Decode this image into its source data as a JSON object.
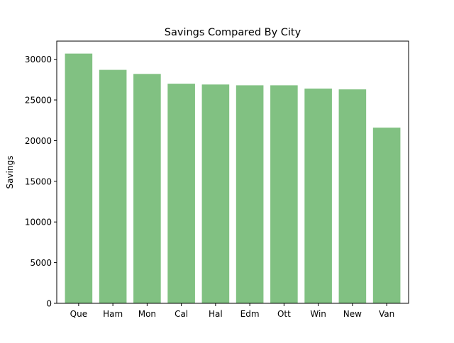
{
  "chart_data": {
    "type": "bar",
    "title": "Savings Compared By City",
    "xlabel": "",
    "ylabel": "Savings",
    "categories": [
      "Que",
      "Ham",
      "Mon",
      "Cal",
      "Hal",
      "Edm",
      "Ott",
      "Win",
      "New",
      "Van"
    ],
    "values": [
      30700,
      28700,
      28200,
      27000,
      26900,
      26800,
      26800,
      26400,
      26300,
      21600
    ],
    "ylim": [
      0,
      32235
    ],
    "yticks": [
      0,
      5000,
      10000,
      15000,
      20000,
      25000,
      30000
    ],
    "grid": false,
    "legend": "none",
    "bar_color": "#81c182"
  }
}
